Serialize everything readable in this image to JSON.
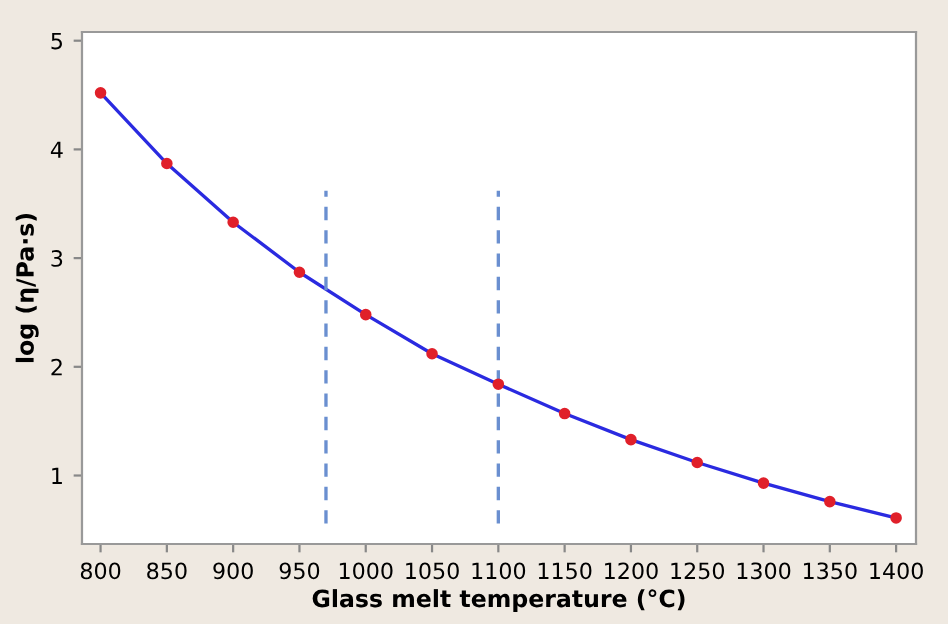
{
  "chart_data": {
    "type": "line",
    "xlabel": "Glass melt temperature (°C)",
    "ylabel": "log (η/Pa·s)",
    "x": [
      800,
      850,
      900,
      950,
      1000,
      1050,
      1100,
      1150,
      1200,
      1250,
      1300,
      1350,
      1400
    ],
    "series": [
      {
        "color": "#2a2ae0",
        "marker": "none",
        "line_style": "solid",
        "values": [
          4.52,
          3.87,
          3.33,
          2.87,
          2.48,
          2.12,
          1.84,
          1.57,
          1.33,
          1.12,
          0.93,
          0.76,
          0.61
        ]
      },
      {
        "type": "scatter",
        "color": "#e0202a",
        "marker": "circle",
        "values": [
          4.52,
          3.87,
          3.33,
          2.87,
          2.48,
          2.12,
          1.84,
          1.57,
          1.33,
          1.12,
          0.93,
          0.76,
          0.61
        ]
      }
    ],
    "ref_lines": [
      {
        "axis": "x",
        "value": 970,
        "color": "#6a8fd0",
        "line_style": "dashed"
      },
      {
        "axis": "x",
        "value": 1100,
        "color": "#6a8fd0",
        "line_style": "dashed"
      }
    ],
    "xlim": [
      786,
      1415
    ],
    "xticks": [
      800,
      850,
      900,
      950,
      1000,
      1050,
      1100,
      1150,
      1200,
      1250,
      1300,
      1350,
      1400
    ],
    "ylim": [
      0.37,
      5.08
    ],
    "yticks": [
      1,
      2,
      3,
      4,
      5
    ],
    "grid": false,
    "legend": false
  }
}
